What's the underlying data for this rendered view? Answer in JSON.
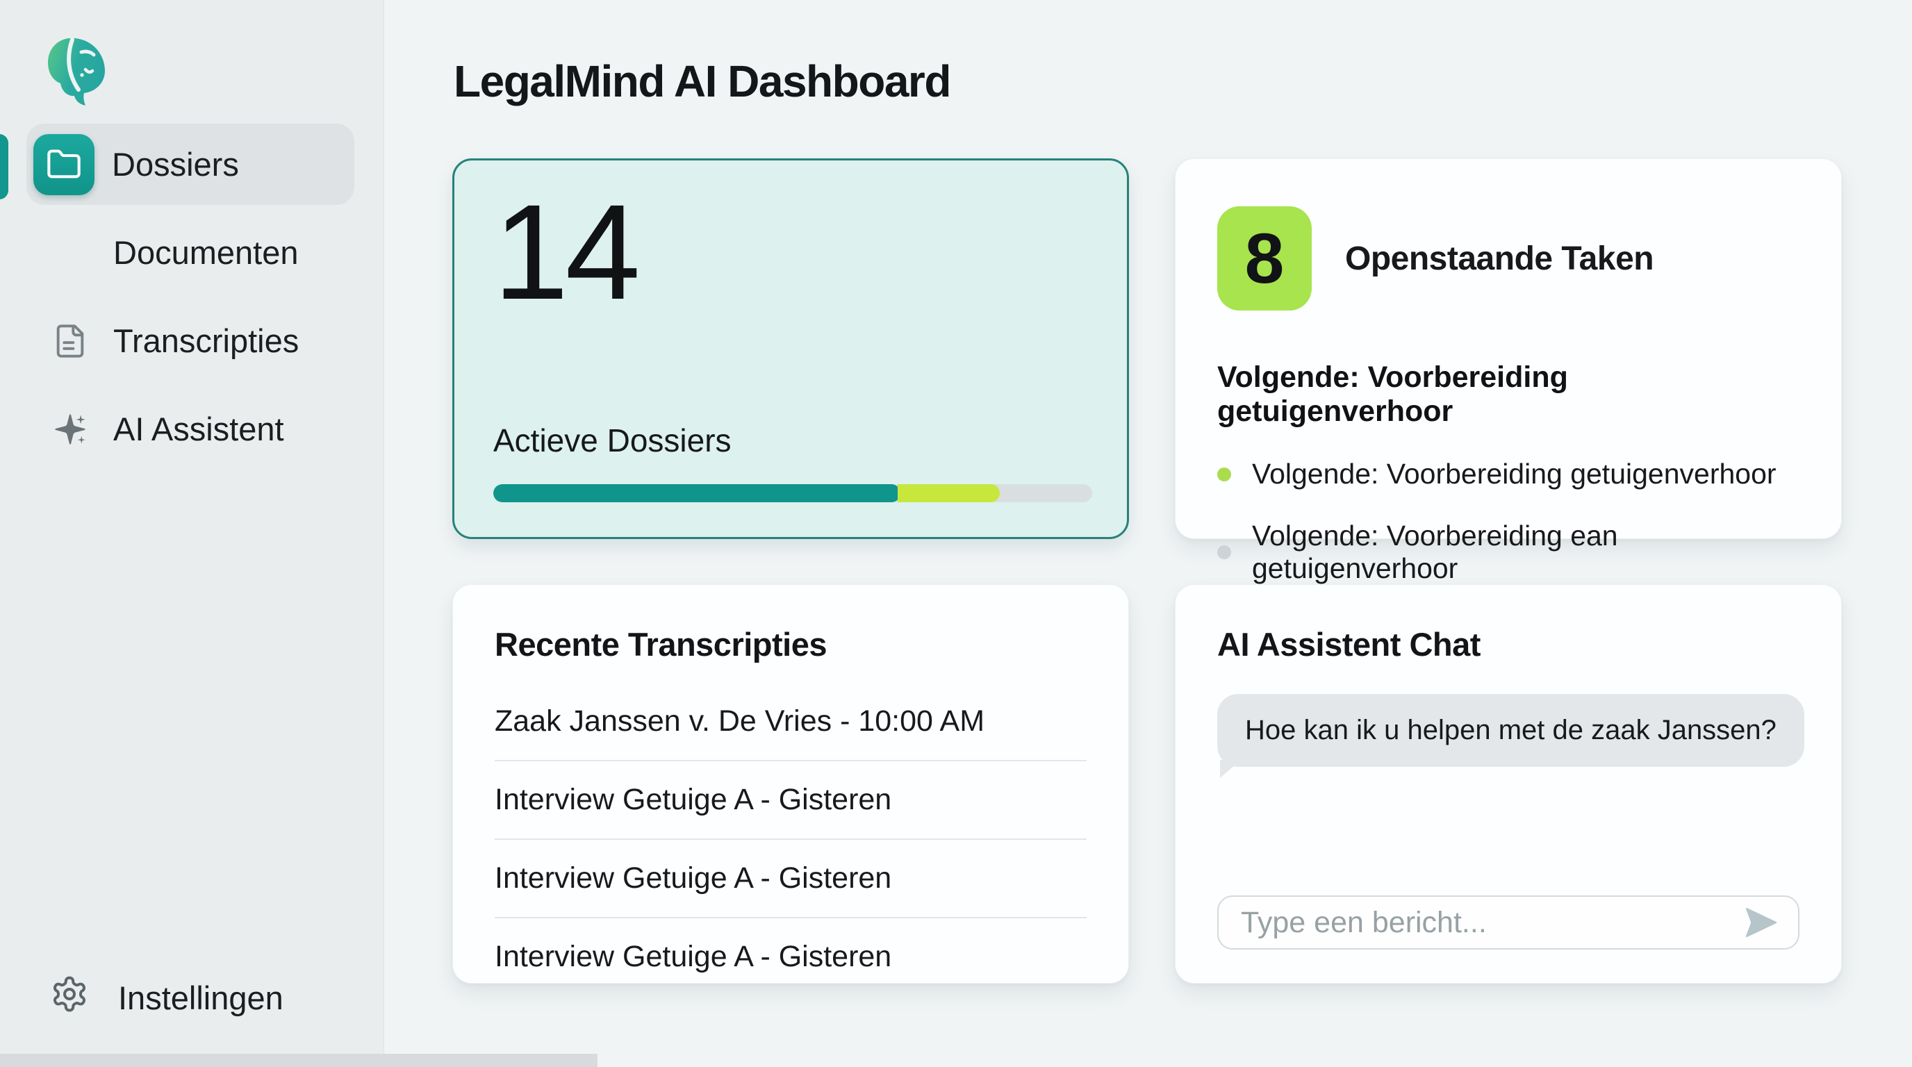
{
  "app": {
    "title": "LegalMind AI Dashboard"
  },
  "sidebar": {
    "items": [
      {
        "label": "Dossiers",
        "icon": "folder-icon",
        "active": true
      },
      {
        "label": "Documenten",
        "icon": "document-icon",
        "active": false
      },
      {
        "label": "Transcripties",
        "icon": "transcript-icon",
        "active": false
      },
      {
        "label": "AI Assistent",
        "icon": "sparkles-icon",
        "active": false
      }
    ],
    "settings": {
      "label": "Instellingen",
      "icon": "gear-icon"
    }
  },
  "active_dossiers": {
    "count": "14",
    "label": "Actieve Dossiers",
    "progress": {
      "completed_pct": 68,
      "secondary_pct": 17
    }
  },
  "open_tasks": {
    "count": "8",
    "title": "Openstaande Taken",
    "next_task": "Volgende: Voorbereiding getuigenverhoor",
    "items": [
      {
        "text": "Volgende: Voorbereiding getuigenverhoor",
        "dot": "lime"
      },
      {
        "text": "Volgende: Voorbereiding ean getuigenverhoor",
        "dot": "gray"
      }
    ]
  },
  "recent_transcripts": {
    "title": "Recente Transcripties",
    "items": [
      {
        "text": "Zaak Janssen v. De Vries - 10:00 AM"
      },
      {
        "text": "Interview Getuige A - Gisteren"
      },
      {
        "text": "Interview Getuige A - Gisteren"
      },
      {
        "text": "Interview Getuige A - Gisteren"
      }
    ]
  },
  "chat": {
    "title": "AI Assistent Chat",
    "assistant_message": "Hoe kan ik u helpen met de zaak Janssen?",
    "input_value": "",
    "input_placeholder": "Type een bericht..."
  },
  "colors": {
    "accent_teal": "#12968d",
    "icon_box_teal": "#15a096",
    "badge_lime": "#a7e44d",
    "progress_teal": "#0f958c",
    "progress_lime": "#c7e73c",
    "progress_track": "#d9dfe1",
    "mint_card_bg": "#ddf1ee",
    "mint_card_border": "#26827a",
    "bubble_gray": "#e4e7e9",
    "sidebar_bg": "#e9edee",
    "main_bg": "#f0f4f5"
  }
}
